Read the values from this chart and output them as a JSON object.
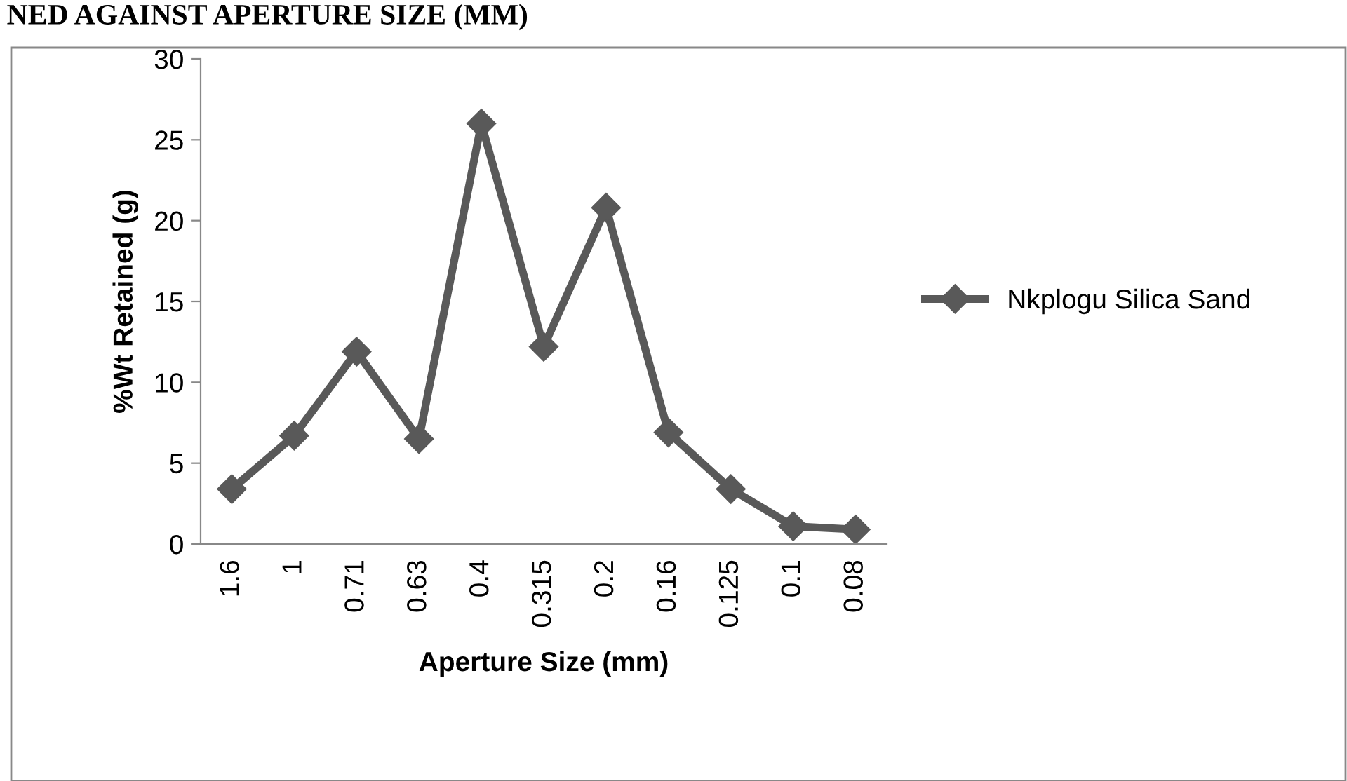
{
  "chart_data": {
    "type": "line",
    "title": "NED AGAINST APERTURE SIZE (MM)",
    "xlabel": "Aperture Size (mm)",
    "ylabel": "%Wt Retained (g)",
    "categories": [
      "1.6",
      "1",
      "0.71",
      "0.63",
      "0.4",
      "0.315",
      "0.2",
      "0.16",
      "0.125",
      "0.1",
      "0.08"
    ],
    "series": [
      {
        "name": "Nkplogu Silica Sand",
        "color": "#595959",
        "values": [
          3.4,
          6.7,
          11.9,
          6.5,
          26.0,
          12.2,
          20.8,
          6.9,
          3.4,
          1.1,
          0.9
        ]
      }
    ],
    "ylim": [
      0,
      30
    ],
    "yticks": [
      0,
      5,
      10,
      15,
      20,
      25,
      30
    ],
    "grid": false,
    "legend": "right",
    "marker": "diamond",
    "line_style": "solid"
  }
}
